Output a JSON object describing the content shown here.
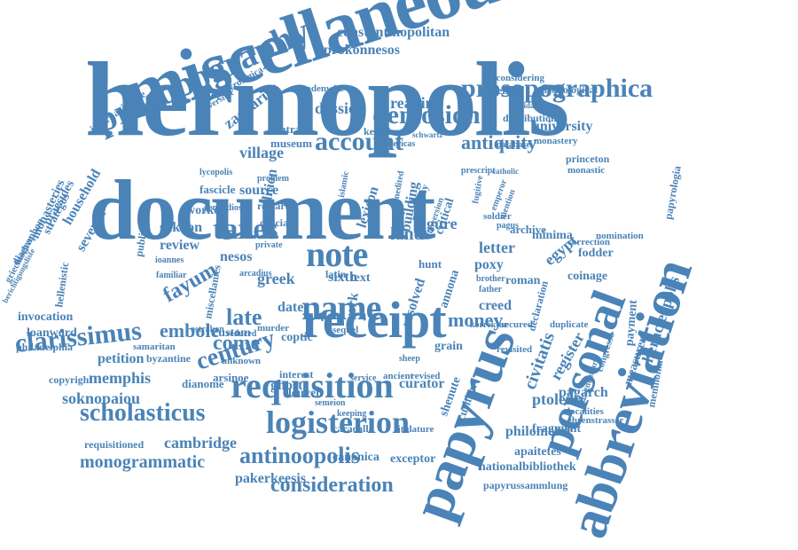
{
  "color": "#4a83b7",
  "words": [
    "hermopolis",
    "document",
    "miscellaneous",
    "receipt",
    "papyrus",
    "abbreviation",
    "personal",
    "name",
    "note",
    "requisition",
    "logisterion",
    "prosopography",
    "prosopographica",
    "account",
    "demosion",
    "taxes",
    "scholasticus",
    "clarissimus",
    "century",
    "consideration",
    "antinoopolis",
    "monogrammatic",
    "money",
    "antiquity",
    "constantinopolitan",
    "prokonnesos",
    "village",
    "dossier",
    "reading",
    "university",
    "egypt",
    "letter",
    "land",
    "figure",
    "late",
    "come",
    "embole",
    "fayum",
    "memphis",
    "soknopaiou",
    "cambridge",
    "pakerkeesis",
    "civitatis",
    "register",
    "pagarch",
    "ptolemy",
    "philometor",
    "apaitetes",
    "nationalbibliothek",
    "papyrussammlung",
    "heracleopolis",
    "payment",
    "measurer",
    "memnonia",
    "sakaon",
    "review",
    "petition",
    "custom",
    "greek",
    "nesos",
    "invocation",
    "loanword",
    "philadelphia",
    "copyright",
    "monasteries",
    "household",
    "seventh",
    "praesides",
    "diagraphon",
    "internazionale",
    "zacharias",
    "papyrologica",
    "gradenwitz",
    "reconsidering",
    "defensor",
    "chronological",
    "keration",
    "fragment",
    "shenute",
    "cushion",
    "curator",
    "ghost",
    "leuven",
    "creed",
    "resolved",
    "grain",
    "annona",
    "coptic",
    "requisitioned",
    "canonica",
    "exceptor",
    "caracalla",
    "titulature",
    "dianome",
    "lycopolis",
    "worker",
    "source",
    "edition",
    "museum",
    "contract",
    "fascicle",
    "distribution",
    "database",
    "monastery",
    "princeton",
    "papyrologia",
    "minima",
    "fodder",
    "coinage",
    "roman",
    "poxy",
    "lexicon",
    "building",
    "critical",
    "archive",
    "official",
    "remark",
    "islamic",
    "sixth",
    "latin",
    "text",
    "work",
    "date",
    "soldier",
    "byzantine",
    "hellenistic",
    "publication",
    "interest",
    "unknown",
    "ancient",
    "revised",
    "service",
    "semeion",
    "korrektur",
    "secured",
    "declaration",
    "revisited",
    "duplicate",
    "localities",
    "congresso",
    "fragmentary",
    "ehrenstrasser",
    "nomination",
    "correction",
    "monastic",
    "catholic",
    "prescript",
    "problem",
    "sequel",
    "sheep",
    "keeping",
    "private",
    "familiar",
    "ioannes",
    "samaritan",
    "miscellanies",
    "murder",
    "reduced",
    "arsinoe",
    "fugitive",
    "emperor",
    "mention",
    "ostrakon",
    "griechischen",
    "strategos",
    "berichtigungsliste",
    "universitet",
    "elucidation",
    "schwartz",
    "americas",
    "mummy",
    "conversion",
    "pagus",
    "unedited",
    "arcadius",
    "father",
    "brother",
    "gennadios",
    "hunt"
  ]
}
